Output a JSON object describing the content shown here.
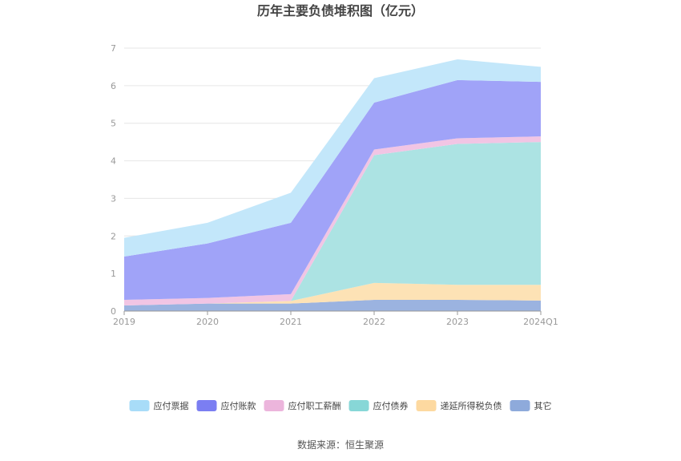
{
  "chart_data": {
    "type": "area",
    "stacked": true,
    "title": "历年主要负债堆积图（亿元）",
    "categories": [
      "2019",
      "2020",
      "2021",
      "2022",
      "2023",
      "2024Q1"
    ],
    "ylim": [
      0,
      7
    ],
    "yticks": [
      0,
      1,
      2,
      3,
      4,
      5,
      6,
      7
    ],
    "grid": true,
    "legend_position": "bottom",
    "series": [
      {
        "name": "其它",
        "color": "#9bb3e0",
        "values": [
          0.15,
          0.2,
          0.2,
          0.3,
          0.3,
          0.28
        ]
      },
      {
        "name": "递延所得税负债",
        "color": "#fde2b5",
        "values": [
          0.0,
          0.0,
          0.07,
          0.45,
          0.4,
          0.42
        ]
      },
      {
        "name": "应付债券",
        "color": "#ace3e3",
        "values": [
          0.0,
          0.0,
          0.0,
          3.4,
          3.75,
          3.8
        ]
      },
      {
        "name": "应付职工薪酬",
        "color": "#f1c5e4",
        "values": [
          0.15,
          0.15,
          0.18,
          0.15,
          0.15,
          0.15
        ]
      },
      {
        "name": "应付账款",
        "color": "#a0a3f8",
        "values": [
          1.15,
          1.45,
          1.9,
          1.25,
          1.55,
          1.45
        ]
      },
      {
        "name": "应付票据",
        "color": "#c3e7fa",
        "values": [
          0.5,
          0.55,
          0.8,
          0.65,
          0.55,
          0.4
        ]
      }
    ],
    "legend": [
      {
        "name": "应付票据",
        "color": "#a8dcf8"
      },
      {
        "name": "应付账款",
        "color": "#7b7ef2"
      },
      {
        "name": "应付职工薪酬",
        "color": "#ecb5dc"
      },
      {
        "name": "应付债券",
        "color": "#87d7d7"
      },
      {
        "name": "递延所得税负债",
        "color": "#fdd9a0"
      },
      {
        "name": "其它",
        "color": "#8eaadb"
      }
    ]
  },
  "source_text": "数据来源：恒生聚源"
}
